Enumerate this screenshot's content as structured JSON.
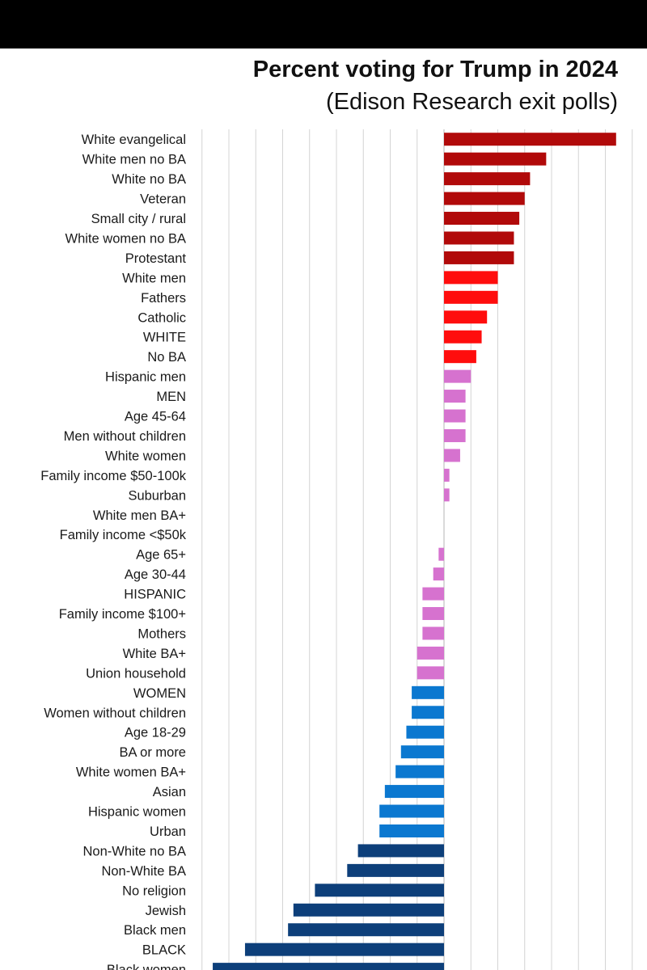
{
  "chart_data": {
    "type": "bar",
    "orientation": "horizontal",
    "title": "Percent voting for Trump in 2024",
    "subtitle": "(Edison Research exit polls)",
    "xlabel": "",
    "ylabel": "",
    "grid": true,
    "xlim": [
      -45,
      32
    ],
    "categories": [
      "White evangelical",
      "White men no BA",
      "White no BA",
      "Veteran",
      "Small city / rural",
      "White women no BA",
      "Protestant",
      "White men",
      "Fathers",
      "Catholic",
      "WHITE",
      "No BA",
      "Hispanic men",
      "MEN",
      "Age 45-64",
      "Men without children",
      "White women",
      "Family income $50-100k",
      "Suburban",
      "White men BA+",
      "Family income <$50k",
      "Age 65+",
      "Age 30-44",
      "HISPANIC",
      "Family income $100+",
      "Mothers",
      "White BA+",
      "Union household",
      "WOMEN",
      "Women without children",
      "Age 18-29",
      "BA or more",
      "White women BA+",
      "Asian",
      "Hispanic women",
      "Urban",
      "Non-White no BA",
      "Non-White BA",
      "No religion",
      "Jewish",
      "Black men",
      "BLACK",
      "Black women"
    ],
    "values": [
      32,
      19,
      16,
      15,
      14,
      13,
      13,
      10,
      10,
      8,
      7,
      6,
      5,
      4,
      4,
      4,
      3,
      1,
      1,
      0,
      0,
      -1,
      -2,
      -4,
      -4,
      -4,
      -5,
      -5,
      -6,
      -6,
      -7,
      -8,
      -9,
      -11,
      -12,
      -12,
      -16,
      -18,
      -24,
      -28,
      -29,
      -37,
      -43
    ],
    "colors": {
      "strong_red": "#b10a0a",
      "red": "#ff0d0d",
      "pink": "#d672cf",
      "blue": "#0b78d0",
      "navy": "#0d3f7a",
      "gridline": "#d4d4d4",
      "zero_axis": "#b5b5b5"
    }
  }
}
